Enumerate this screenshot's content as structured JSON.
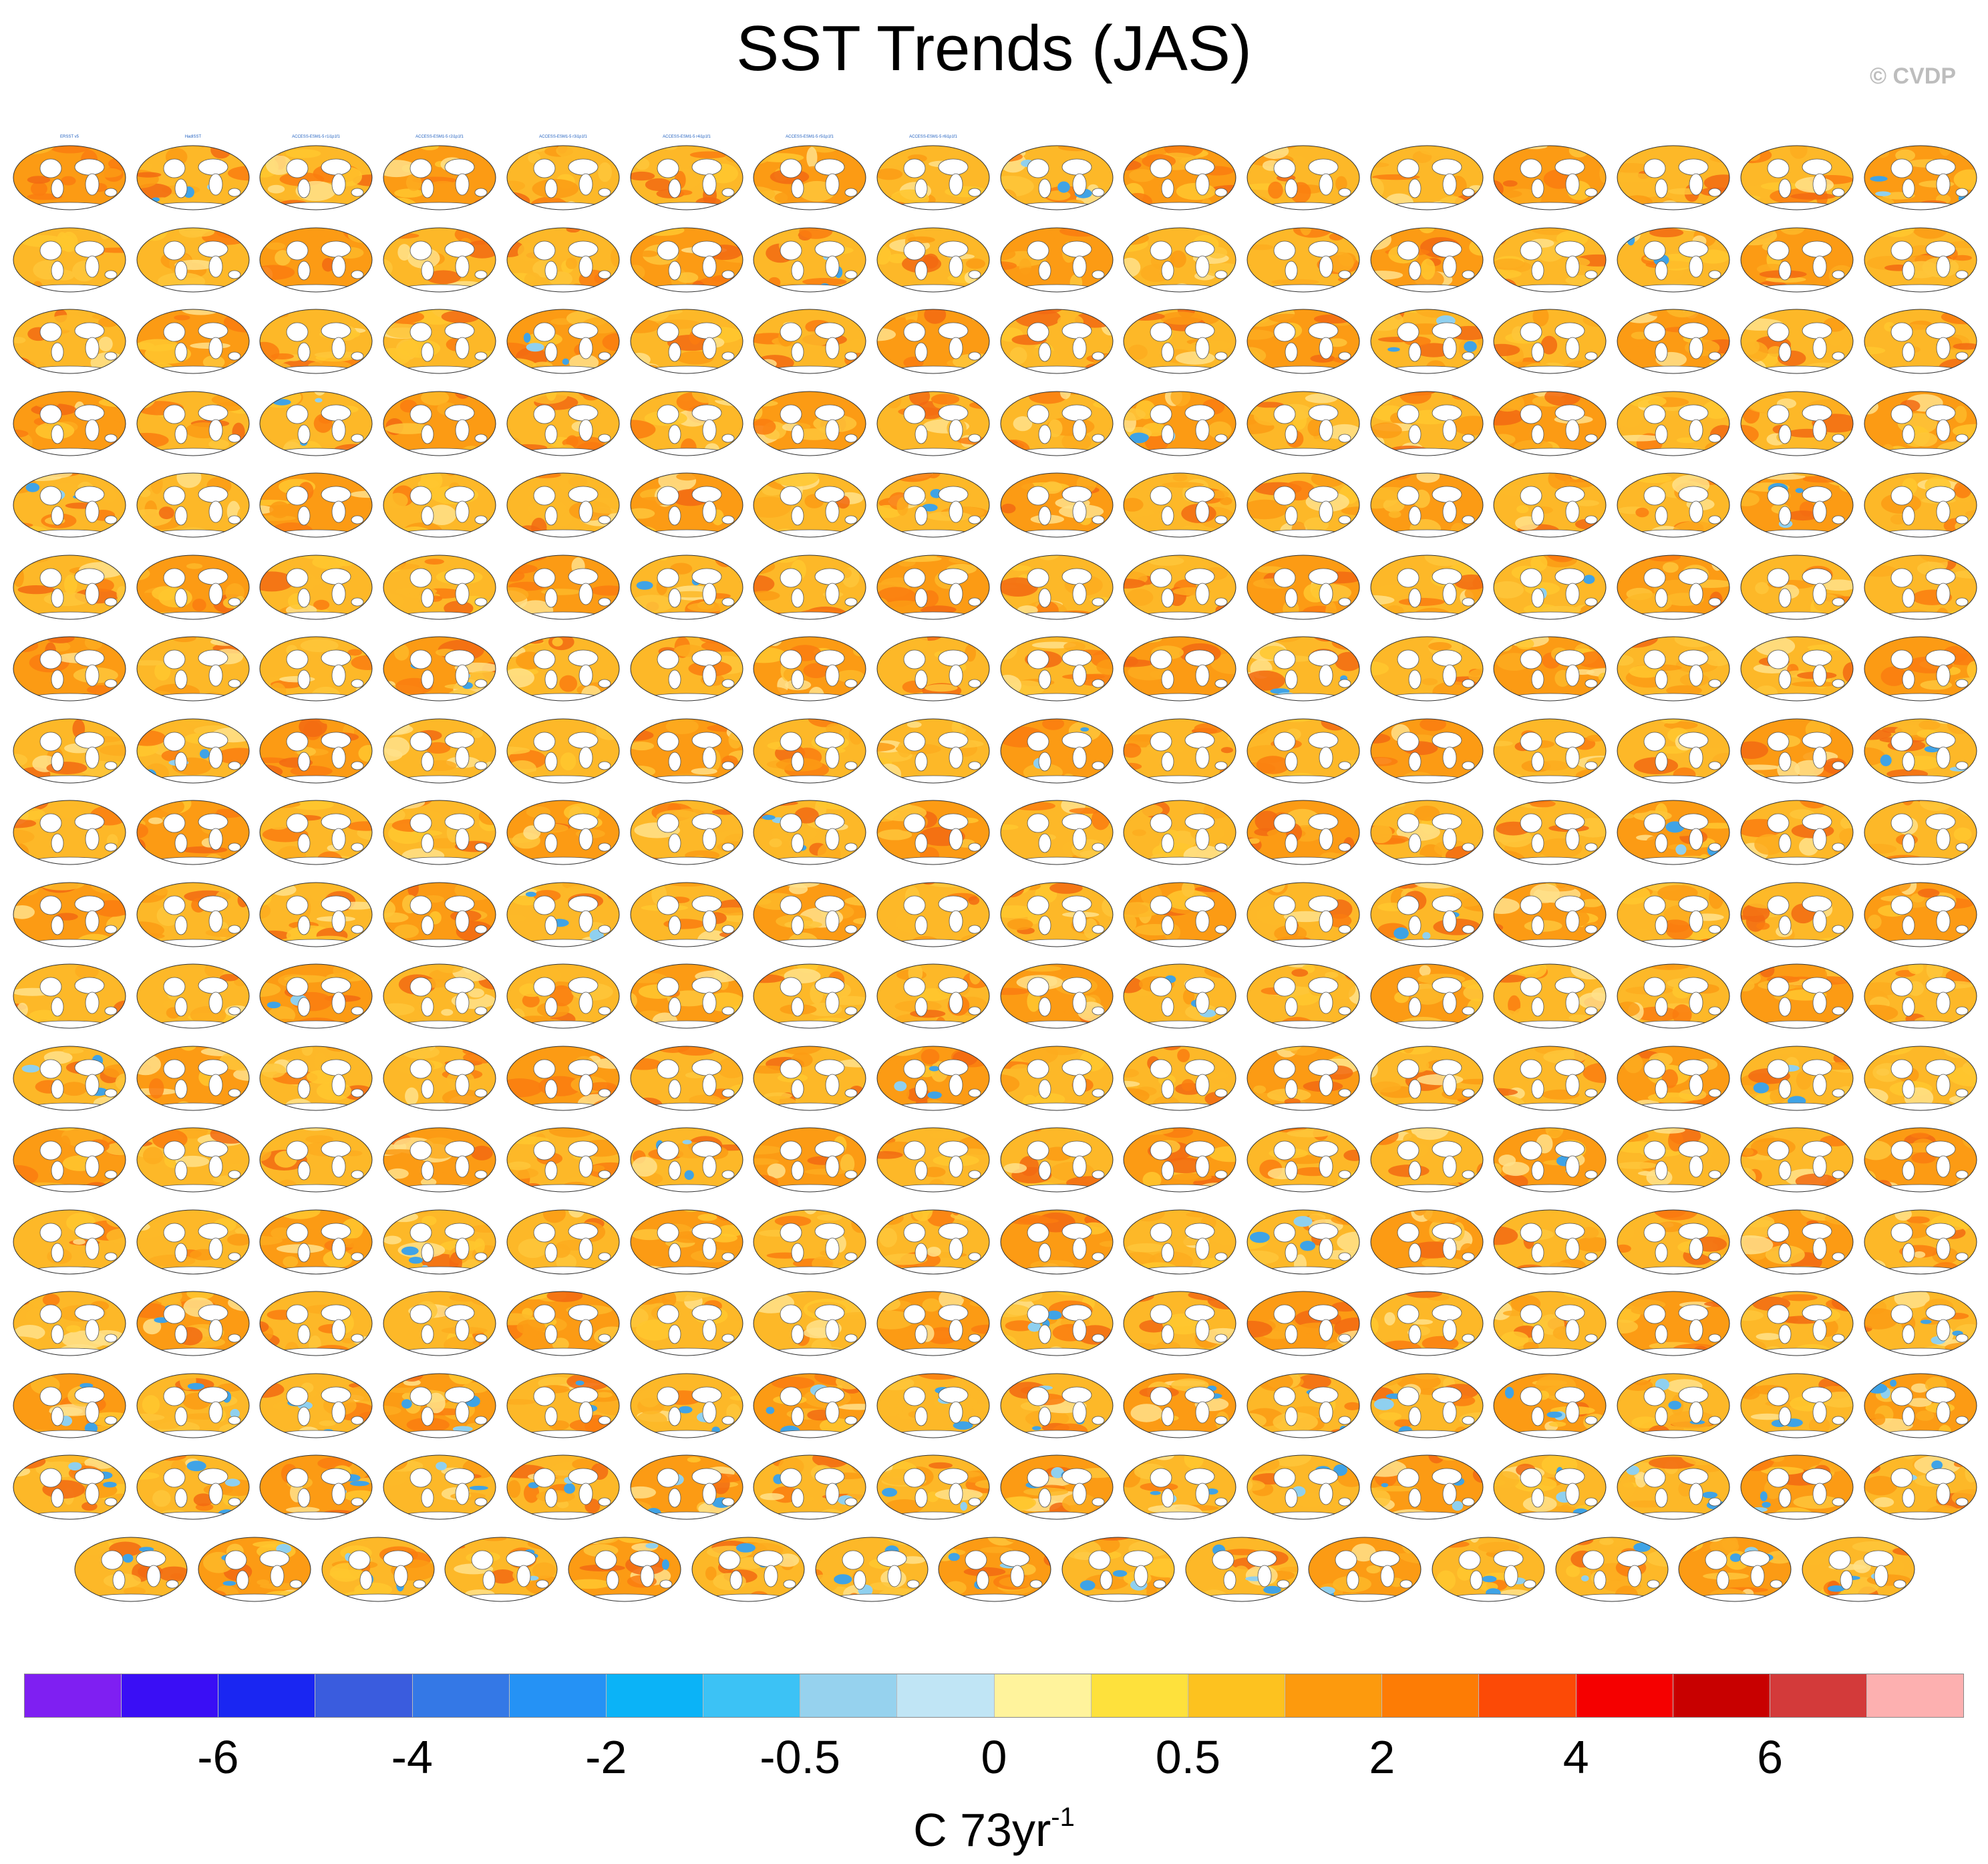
{
  "title": "SST Trends (JAS)",
  "copyright": "© CVDP",
  "panels": {
    "rows": 18,
    "columns": 16,
    "last_row_count": 15,
    "map_palette": [
      "#fdb828",
      "#fc9b14",
      "#fec63a",
      "#fa7d0f",
      "#ffe08a",
      "#ffc72e",
      "#f26a12",
      "#fdab1e"
    ],
    "first_labels": [
      "ERSST v5",
      "HadISST",
      "ACCESS-ESM1-5 r1i1p1f1",
      "ACCESS-ESM1-5 r2i1p1f1",
      "ACCESS-ESM1-5 r3i1p1f1",
      "ACCESS-ESM1-5 r4i1p1f1",
      "ACCESS-ESM1-5 r5i1p1f1",
      "ACCESS-ESM1-5 r6i1p1f1"
    ]
  },
  "colorbar": {
    "colors": [
      "#7f1ff2",
      "#3a0ef5",
      "#1a26f2",
      "#3a5cde",
      "#3478e6",
      "#2592f5",
      "#0bb3f7",
      "#3cc2f5",
      "#96d2ee",
      "#c0e5f5",
      "#fff39c",
      "#fee13c",
      "#fdc21f",
      "#fd9a0d",
      "#fd7c05",
      "#fc4a06",
      "#f50000",
      "#c80000",
      "#d33a3a",
      "#fdb0b0"
    ],
    "tick_labels": [
      "-6",
      "-4",
      "-2",
      "-0.5",
      "0",
      "0.5",
      "2",
      "4",
      "6"
    ],
    "tick_boundaries": [
      2,
      4,
      6,
      8,
      10,
      12,
      14,
      16,
      18
    ],
    "units": "C 73yr",
    "units_exponent": "-1"
  }
}
